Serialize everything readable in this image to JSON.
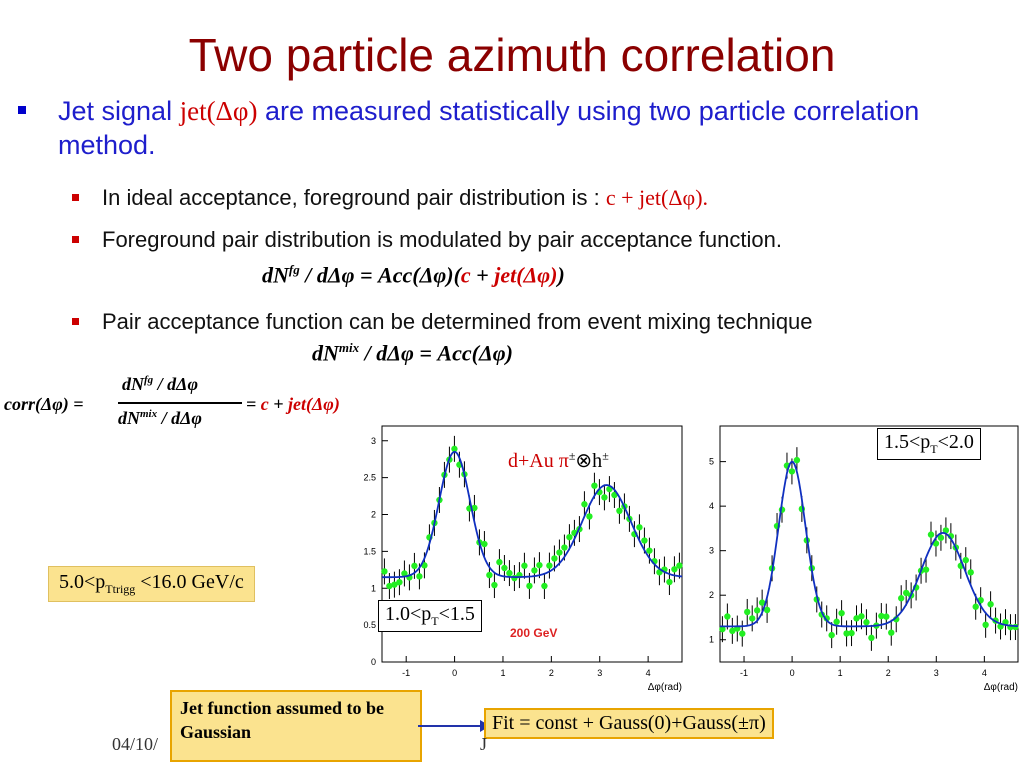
{
  "title": "Two particle azimuth correlation",
  "bullet_main": {
    "prefix": "Jet signal ",
    "jet": "jet(Δφ)",
    "suffix": " are measured statistically using two particle correlation method."
  },
  "sub_bullets": [
    {
      "text": "In ideal acceptance, foreground pair distribution is : ",
      "formula": "c + jet(Δφ)."
    },
    {
      "text": "Foreground pair distribution is modulated by pair acceptance function."
    },
    {
      "text": "Pair acceptance function can be determined from event mixing technique"
    }
  ],
  "equations": {
    "eq1_left": "dN",
    "eq1_sup": "fg",
    "eq1_mid": " / dΔφ = Acc(Δφ)(",
    "eq1_c": "c",
    "eq1_plus": " + ",
    "eq1_jet": "jet(Δφ)",
    "eq1_end": ")",
    "eq2_left": "dN",
    "eq2_sup": "mix",
    "eq2_rest": " / dΔφ = Acc(Δφ)",
    "corr_label": "corr(Δφ) = ",
    "corr_num": "dN",
    "corr_num_sup": "fg",
    "corr_num_rest": " / dΔφ",
    "corr_den": "dN",
    "corr_den_sup": "mix",
    "corr_den_rest": " / dΔφ",
    "corr_eq": " = ",
    "corr_c": "c",
    "corr_plus": " + ",
    "corr_jet": "jet(Δφ)"
  },
  "boxes": {
    "ptrigg": "5.0<p",
    "ptrigg_sub": "Ttrigg",
    "ptrigg_rest": " <16.0 GeV/c",
    "pt1": "1.0<p",
    "pt1_sub": "T",
    "pt1_rest": "<1.5",
    "pt2": "1.5<p",
    "pt2_sub": "T",
    "pt2_rest": "<2.0",
    "dau": "d+Au  π",
    "dau_sup1": "±",
    "dau_mid": "⊗h",
    "dau_sup2": "±",
    "gev": "200 GeV",
    "jet_assumed": "Jet function assumed to be Gaussian",
    "fit": "Fit = const + Gauss(0)+Gauss(±π)"
  },
  "footer": {
    "date": "04/10/",
    "right": "J"
  },
  "chart_data": [
    {
      "type": "scatter",
      "xlabel": "Δφ(rad)",
      "xlim": [
        -1.5,
        4.7
      ],
      "ylim": [
        0,
        3.2
      ],
      "x_ticks": [
        "-1",
        "0",
        "1",
        "2",
        "3",
        "4"
      ],
      "y_ticks": [
        "0",
        "0.5",
        "1",
        "1.5",
        "2",
        "2.5",
        "3"
      ],
      "const": 1.15,
      "gauss": [
        {
          "mu": 0,
          "amp": 1.7,
          "sigma": 0.32
        },
        {
          "mu": 3.14,
          "amp": 1.25,
          "sigma": 0.5
        }
      ]
    },
    {
      "type": "scatter",
      "xlabel": "Δφ(rad)",
      "xlim": [
        -1.5,
        4.7
      ],
      "ylim": [
        0.5,
        5.8
      ],
      "x_ticks": [
        "-1",
        "0",
        "1",
        "2",
        "3",
        "4"
      ],
      "y_ticks": [
        "1",
        "2",
        "3",
        "4",
        "5"
      ],
      "const": 1.3,
      "gauss": [
        {
          "mu": 0,
          "amp": 3.7,
          "sigma": 0.28
        },
        {
          "mu": 3.14,
          "amp": 2.1,
          "sigma": 0.45
        }
      ]
    }
  ]
}
